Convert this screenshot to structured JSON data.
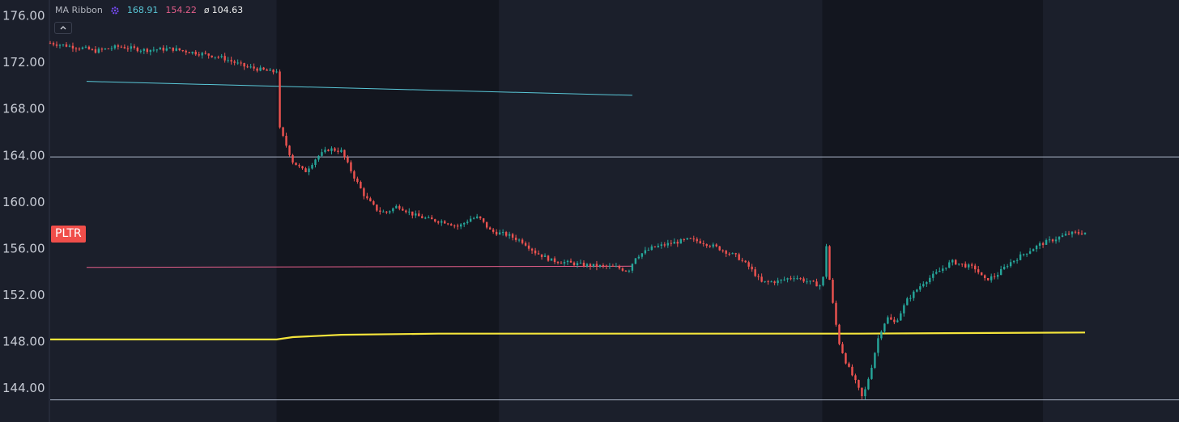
{
  "symbol": "PLTR",
  "legend": {
    "title": "MA Ribbon",
    "icon": "gear-icon",
    "value_1": "168.91",
    "value_2": "154.22",
    "value_3_symbol": "ø",
    "value_3": "104.63",
    "colors": {
      "value_1": "#5ac8d8",
      "value_2": "#e45e8a",
      "value_3": "#f2f2f2"
    }
  },
  "collapse_icon": "chevron-up-icon",
  "colors": {
    "background": "#1b1f2b",
    "session_shade": "#13161f",
    "up_candle": "#26a69a",
    "down_candle": "#ef5350",
    "ma_line": "#f5e53b",
    "trend_upper": "#5ac8d8",
    "trend_lower": "#e45e8a",
    "horizontal_level": "#aab4c6",
    "symbol_badge": "#f04e4a"
  },
  "chart_data": {
    "type": "candlestick",
    "price_axis": {
      "position": "left",
      "ticks": [
        "176.00",
        "172.00",
        "168.00",
        "164.00",
        "160.00",
        "156.00",
        "152.00",
        "148.00",
        "144.00"
      ],
      "ylim": [
        141.0,
        177.3
      ]
    },
    "price_path": [
      [
        0,
        173.6
      ],
      [
        45,
        173.1
      ],
      [
        55,
        172.9
      ],
      [
        85,
        173.3
      ],
      [
        115,
        173.0
      ],
      [
        150,
        173.1
      ],
      [
        185,
        172.7
      ],
      [
        210,
        172.4
      ],
      [
        240,
        171.6
      ],
      [
        275,
        171.1
      ],
      [
        282,
        171.3
      ],
      [
        284,
        166.2
      ],
      [
        300,
        163.4
      ],
      [
        315,
        162.5
      ],
      [
        330,
        163.8
      ],
      [
        345,
        164.5
      ],
      [
        360,
        164.3
      ],
      [
        375,
        162.2
      ],
      [
        390,
        160.3
      ],
      [
        405,
        159.2
      ],
      [
        415,
        159.0
      ],
      [
        430,
        159.6
      ],
      [
        450,
        158.8
      ],
      [
        470,
        158.4
      ],
      [
        490,
        158.2
      ],
      [
        505,
        157.8
      ],
      [
        520,
        158.5
      ],
      [
        530,
        158.6
      ],
      [
        545,
        157.4
      ],
      [
        565,
        157.1
      ],
      [
        585,
        156.5
      ],
      [
        600,
        155.6
      ],
      [
        620,
        154.9
      ],
      [
        640,
        154.7
      ],
      [
        660,
        154.5
      ],
      [
        680,
        154.4
      ],
      [
        700,
        154.3
      ],
      [
        715,
        154.0
      ],
      [
        724,
        155.2
      ],
      [
        745,
        156.0
      ],
      [
        770,
        156.4
      ],
      [
        790,
        156.7
      ],
      [
        805,
        156.5
      ],
      [
        825,
        156.0
      ],
      [
        850,
        155.2
      ],
      [
        865,
        154.3
      ],
      [
        880,
        153.0
      ],
      [
        900,
        153.1
      ],
      [
        920,
        153.5
      ],
      [
        940,
        153.0
      ],
      [
        955,
        152.7
      ],
      [
        960,
        156.2
      ],
      [
        965,
        152.5
      ],
      [
        975,
        148.0
      ],
      [
        985,
        146.0
      ],
      [
        995,
        144.6
      ],
      [
        1005,
        143.0
      ],
      [
        1015,
        145.5
      ],
      [
        1025,
        148.5
      ],
      [
        1035,
        150.0
      ],
      [
        1045,
        149.5
      ],
      [
        1060,
        151.5
      ],
      [
        1080,
        153.0
      ],
      [
        1100,
        154.0
      ],
      [
        1115,
        154.8
      ],
      [
        1130,
        154.5
      ],
      [
        1145,
        154.2
      ],
      [
        1155,
        153.2
      ],
      [
        1170,
        153.6
      ],
      [
        1185,
        154.6
      ],
      [
        1205,
        155.5
      ],
      [
        1225,
        156.3
      ],
      [
        1245,
        156.8
      ],
      [
        1260,
        157.2
      ],
      [
        1280,
        157.3
      ]
    ],
    "moving_average": [
      [
        0,
        148.1
      ],
      [
        280,
        148.1
      ],
      [
        300,
        148.3
      ],
      [
        360,
        148.5
      ],
      [
        480,
        148.6
      ],
      [
        700,
        148.6
      ],
      [
        1000,
        148.6
      ],
      [
        1280,
        148.7
      ]
    ],
    "trendlines": [
      {
        "from": [
          45,
          170.3
        ],
        "to": [
          720,
          169.1
        ],
        "color_key": "trend_upper"
      },
      {
        "from": [
          45,
          154.3
        ],
        "to": [
          720,
          154.4
        ],
        "color_key": "trend_lower"
      }
    ],
    "horizontal_levels": [
      163.8,
      142.9
    ],
    "session_shading": [
      [
        280,
        555
      ],
      [
        955,
        1228
      ]
    ],
    "bar_span": [
      0,
      1280
    ]
  }
}
